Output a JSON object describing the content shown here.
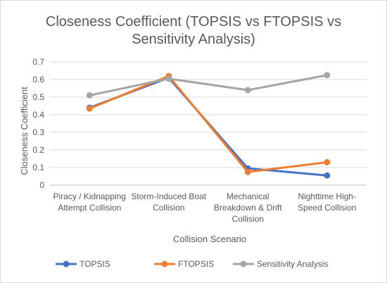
{
  "chart_data": {
    "type": "line",
    "title_lines": [
      "Closeness Coefficient (TOPSIS vs FTOPSIS vs",
      "Sensitivity Analysis)"
    ],
    "xlabel": "Collision Scenario",
    "ylabel": "Closeness Coefficient",
    "categories": [
      [
        "Piracy / Kidnapping",
        "Attempt Collision"
      ],
      [
        "Storm-Induced Boat",
        "Collision"
      ],
      [
        "Mechanical",
        "Breakdown & Drift",
        "Collision"
      ],
      [
        "Nighttime High-",
        "Speed Collision"
      ]
    ],
    "ylim": [
      0,
      0.7
    ],
    "yticks": [
      "0",
      "0.1",
      "0.2",
      "0.3",
      "0.4",
      "0.5",
      "0.6",
      "0.7"
    ],
    "grid": true,
    "legend_position": "bottom",
    "series": [
      {
        "name": "TOPSIS",
        "color": "#4472C4",
        "values": [
          0.44,
          0.61,
          0.095,
          0.055
        ]
      },
      {
        "name": "FTOPSIS",
        "color": "#ED7D31",
        "values": [
          0.435,
          0.62,
          0.075,
          0.13
        ]
      },
      {
        "name": "Sensitivity Analysis",
        "color": "#A5A5A5",
        "values": [
          0.51,
          0.605,
          0.54,
          0.625
        ]
      }
    ]
  }
}
